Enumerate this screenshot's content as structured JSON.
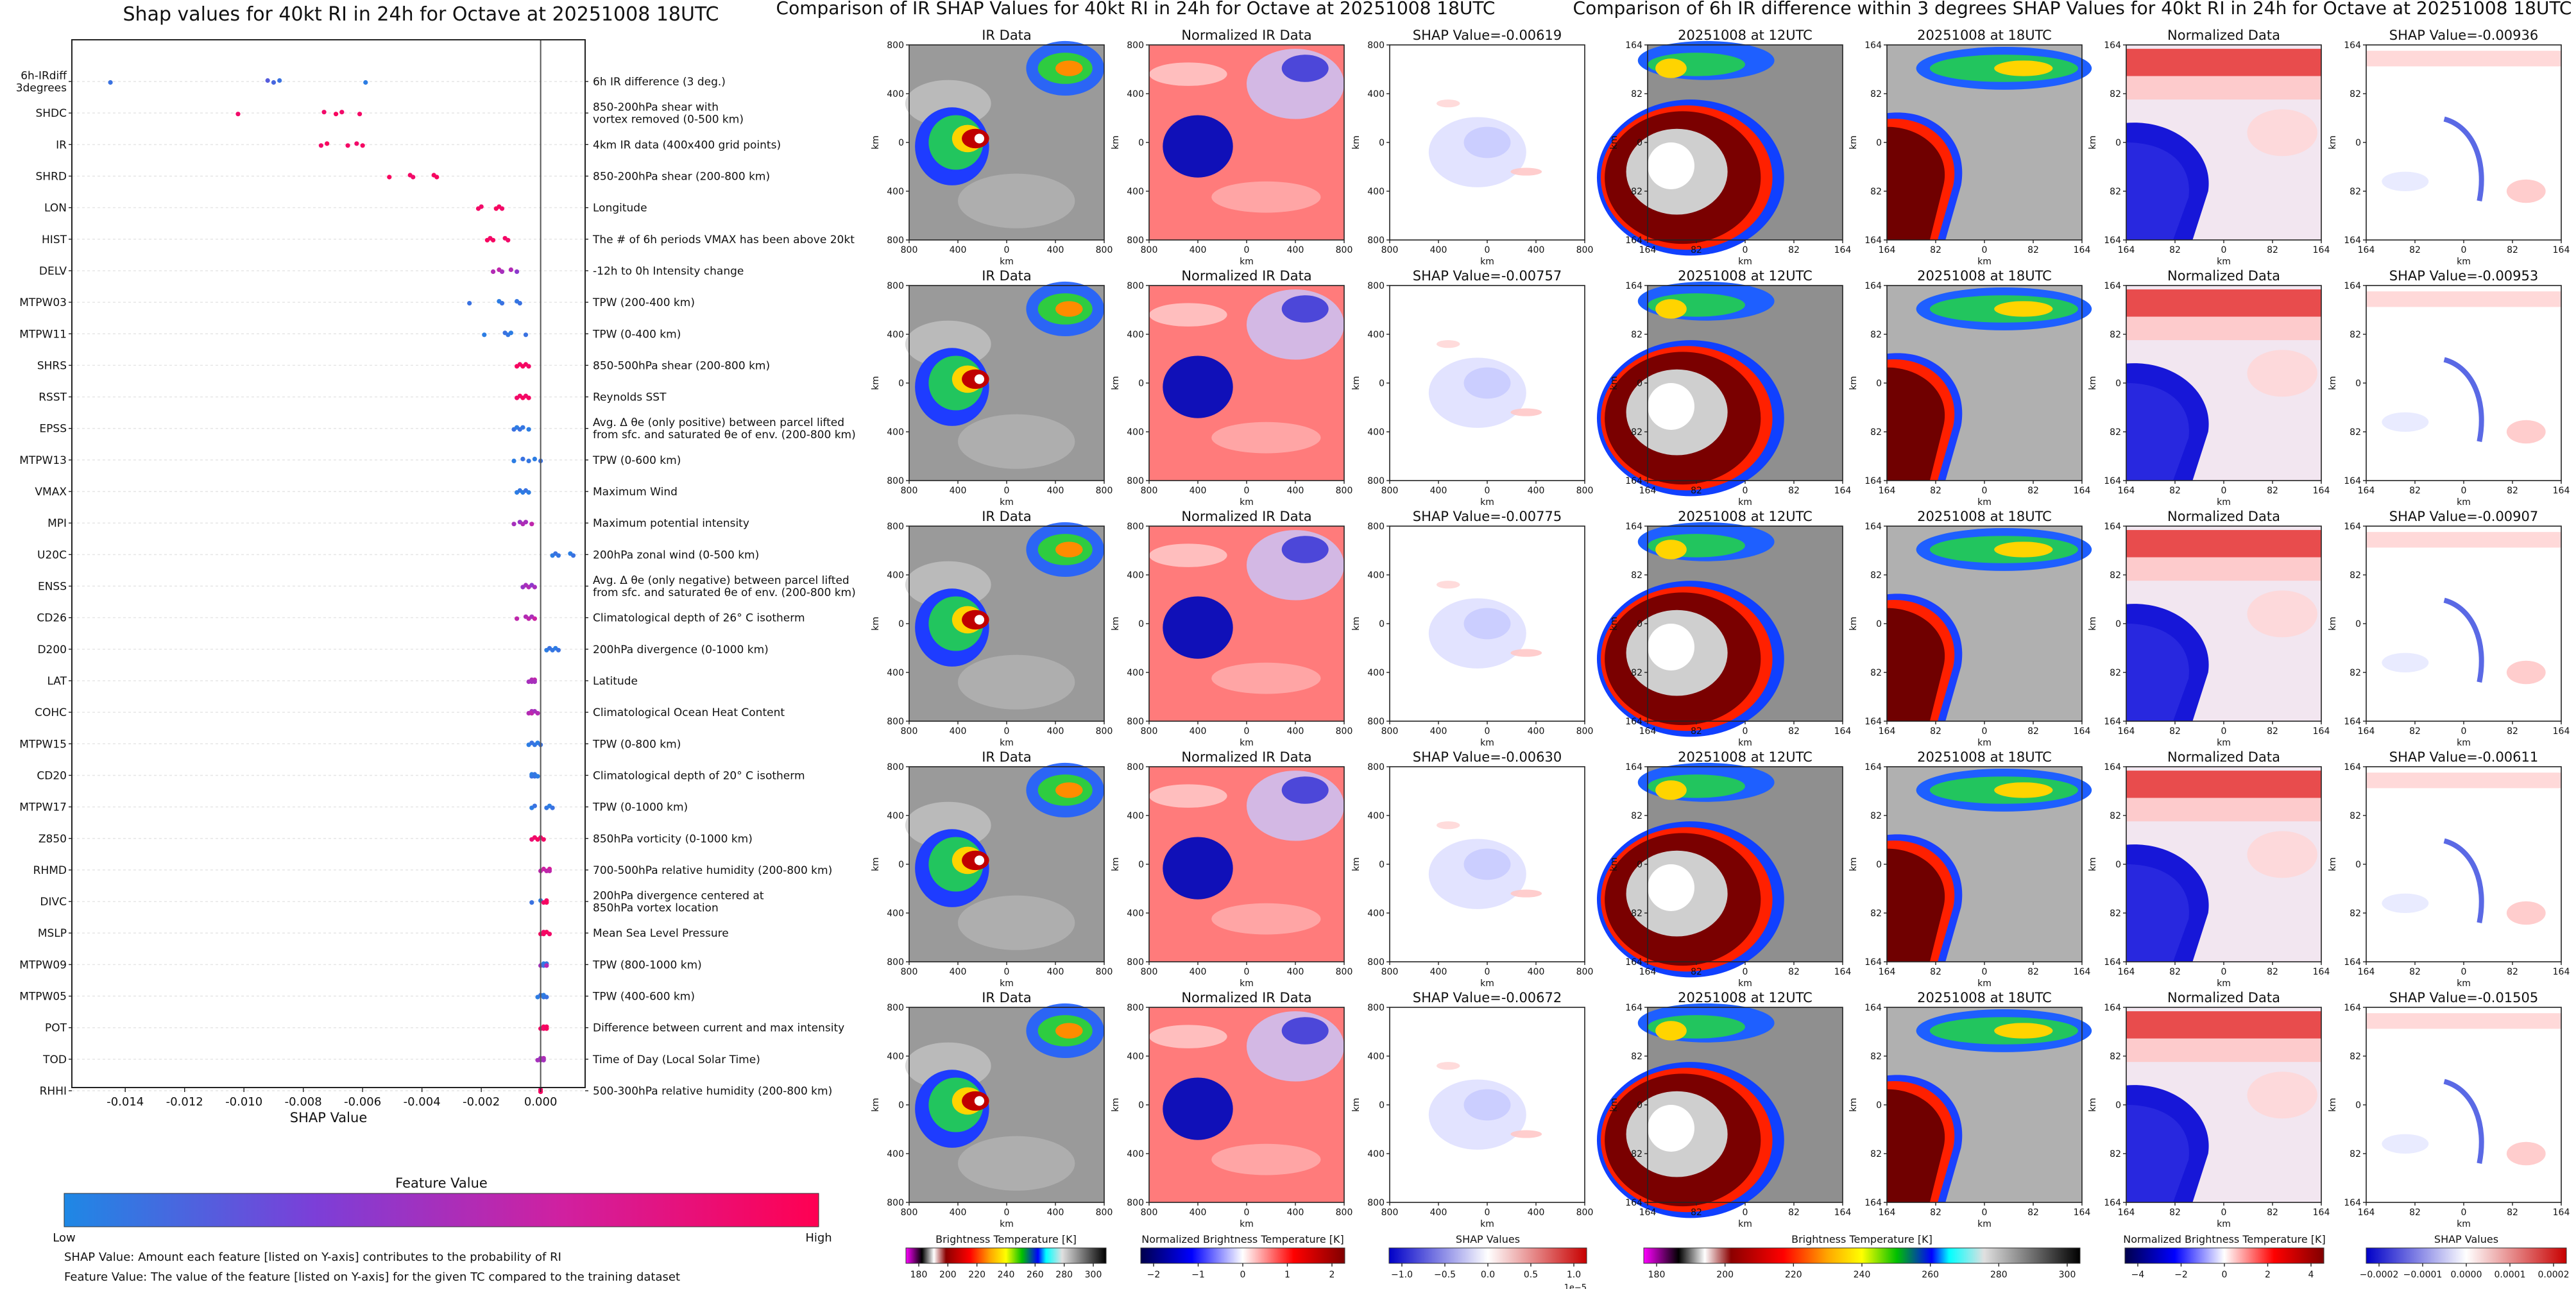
{
  "chart_data": [
    {
      "type": "scatter",
      "title": "Shap values for 40kt RI in 24h for Octave at 20251008 18UTC",
      "xlabel": "SHAP Value",
      "ylabel": "",
      "xlim": [
        -0.0158,
        0.0015
      ],
      "x_ticks": [
        "-0.014",
        "-0.012",
        "-0.010",
        "-0.008",
        "-0.006",
        "-0.004",
        "-0.002",
        "0.000"
      ],
      "x_tick_values": [
        -0.014,
        -0.012,
        -0.01,
        -0.008,
        -0.006,
        -0.004,
        -0.002,
        0.0
      ],
      "grid": "horizontal dashed row lines",
      "colorbar": {
        "title": "Feature Value",
        "low_label": "Low",
        "high_label": "High",
        "colors": [
          "#1e88e5",
          "#7b3fd8",
          "#d020a0",
          "#ff0052"
        ]
      },
      "features": [
        {
          "name": "6h-IRdiff\n3degrees",
          "description": "6h IR difference (3 deg.)",
          "shap": [
            -0.0145,
            -0.0092,
            -0.009,
            -0.0088,
            -0.0059
          ],
          "value": [
            0.1,
            0.2,
            0.15,
            0.1,
            0.05
          ]
        },
        {
          "name": "SHDC",
          "description": "850-200hPa shear with\nvortex removed (0-500 km)",
          "shap": [
            -0.0102,
            -0.0073,
            -0.0069,
            -0.0067,
            -0.0061
          ],
          "value": [
            0.9,
            0.9,
            0.95,
            0.9,
            0.92
          ]
        },
        {
          "name": "IR",
          "description": "4km IR data (400x400 grid points)",
          "shap": [
            -0.0074,
            -0.0072,
            -0.0065,
            -0.0062,
            -0.006
          ],
          "value": [
            0.9,
            0.95,
            0.92,
            0.9,
            0.93
          ]
        },
        {
          "name": "SHRD",
          "description": "850-200hPa shear (200-800 km)",
          "shap": [
            -0.0051,
            -0.0044,
            -0.0043,
            -0.0036,
            -0.0035
          ],
          "value": [
            0.95,
            0.92,
            0.9,
            0.93,
            0.95
          ]
        },
        {
          "name": "LON",
          "description": "Longitude",
          "shap": [
            -0.0021,
            -0.002,
            -0.0015,
            -0.0014,
            -0.0013
          ],
          "value": [
            0.92,
            0.9,
            0.95,
            0.93,
            0.9
          ]
        },
        {
          "name": "HIST",
          "description": "The # of 6h periods VMAX has been above 20kt",
          "shap": [
            -0.0018,
            -0.0017,
            -0.0016,
            -0.0012,
            -0.0011
          ],
          "value": [
            0.95,
            0.9,
            0.93,
            0.92,
            0.9
          ]
        },
        {
          "name": "DELV",
          "description": "-12h to 0h Intensity change",
          "shap": [
            -0.0016,
            -0.0014,
            -0.0013,
            -0.001,
            -0.0008
          ],
          "value": [
            0.55,
            0.6,
            0.5,
            0.55,
            0.4
          ]
        },
        {
          "name": "MTPW03",
          "description": "TPW (200-400 km)",
          "shap": [
            -0.0024,
            -0.0014,
            -0.0013,
            -0.0008,
            -0.0007
          ],
          "value": [
            0.1,
            0.05,
            0.1,
            0.08,
            0.1
          ]
        },
        {
          "name": "MTPW11",
          "description": "TPW (0-400 km)",
          "shap": [
            -0.0019,
            -0.0012,
            -0.0011,
            -0.001,
            -0.0005
          ],
          "value": [
            0.05,
            0.1,
            0.08,
            0.05,
            0.1
          ]
        },
        {
          "name": "SHRS",
          "description": "850-500hPa shear (200-800 km)",
          "shap": [
            -0.0008,
            -0.0007,
            -0.0006,
            -0.0005,
            -0.0004
          ],
          "value": [
            0.95,
            0.92,
            0.95,
            0.93,
            0.9
          ]
        },
        {
          "name": "RSST",
          "description": "Reynolds SST",
          "shap": [
            -0.0008,
            -0.0007,
            -0.0006,
            -0.0005,
            -0.0004
          ],
          "value": [
            0.9,
            0.92,
            0.95,
            0.9,
            0.93
          ]
        },
        {
          "name": "EPSS",
          "description": "Avg. Δ θe (only positive) between parcel lifted\nfrom sfc. and saturated θe of env. (200-800 km)",
          "shap": [
            -0.0009,
            -0.0008,
            -0.0007,
            -0.0006,
            -0.0004
          ],
          "value": [
            0.1,
            0.05,
            0.1,
            0.08,
            0.05
          ]
        },
        {
          "name": "MTPW13",
          "description": "TPW (0-600 km)",
          "shap": [
            -0.0009,
            -0.0006,
            -0.0004,
            -0.0002,
            0.0
          ],
          "value": [
            0.05,
            0.1,
            0.08,
            0.05,
            0.1
          ]
        },
        {
          "name": "VMAX",
          "description": "Maximum Wind",
          "shap": [
            -0.0008,
            -0.0007,
            -0.0006,
            -0.0005,
            -0.0004
          ],
          "value": [
            0.05,
            0.08,
            0.05,
            0.1,
            0.05
          ]
        },
        {
          "name": "MPI",
          "description": "Maximum potential intensity",
          "shap": [
            -0.0009,
            -0.0007,
            -0.0006,
            -0.0005,
            -0.0003
          ],
          "value": [
            0.5,
            0.45,
            0.55,
            0.5,
            0.6
          ]
        },
        {
          "name": "U20C",
          "description": "200hPa zonal wind (0-500 km)",
          "shap": [
            0.0004,
            0.0005,
            0.0006,
            0.001,
            0.0011
          ],
          "value": [
            0.05,
            0.1,
            0.08,
            0.05,
            0.1
          ]
        },
        {
          "name": "ENSS",
          "description": "Avg. Δ θe (only negative) between parcel lifted\nfrom sfc. and saturated θe of env. (200-800 km)",
          "shap": [
            -0.0006,
            -0.0005,
            -0.0004,
            -0.0003,
            -0.0002
          ],
          "value": [
            0.45,
            0.5,
            0.55,
            0.4,
            0.5
          ]
        },
        {
          "name": "CD26",
          "description": "Climatological depth of 26° C isotherm",
          "shap": [
            -0.0008,
            -0.0005,
            -0.0004,
            -0.0003,
            -0.0002
          ],
          "value": [
            0.6,
            0.55,
            0.6,
            0.5,
            0.65
          ]
        },
        {
          "name": "D200",
          "description": "200hPa divergence (0-1000 km)",
          "shap": [
            0.0002,
            0.0003,
            0.0004,
            0.0005,
            0.0006
          ],
          "value": [
            0.05,
            0.1,
            0.08,
            0.05,
            0.1
          ]
        },
        {
          "name": "LAT",
          "description": "Latitude",
          "shap": [
            -0.0004,
            -0.0003,
            -0.0003,
            -0.0002,
            -0.0002
          ],
          "value": [
            0.5,
            0.55,
            0.5,
            0.6,
            0.5
          ]
        },
        {
          "name": "COHC",
          "description": "Climatological Ocean Heat Content",
          "shap": [
            -0.0004,
            -0.0003,
            -0.0003,
            -0.0002,
            -0.0001
          ],
          "value": [
            0.55,
            0.5,
            0.6,
            0.5,
            0.55
          ]
        },
        {
          "name": "MTPW15",
          "description": "TPW (0-800 km)",
          "shap": [
            -0.0004,
            -0.0003,
            -0.0002,
            -0.0001,
            0.0
          ],
          "value": [
            0.05,
            0.1,
            0.08,
            0.05,
            0.1
          ]
        },
        {
          "name": "CD20",
          "description": "Climatological depth of 20° C isotherm",
          "shap": [
            -0.0003,
            -0.0003,
            -0.0002,
            -0.0002,
            -0.0001
          ],
          "value": [
            0.1,
            0.05,
            0.1,
            0.08,
            0.05
          ]
        },
        {
          "name": "MTPW17",
          "description": "TPW (0-1000 km)",
          "shap": [
            -0.0003,
            -0.0002,
            0.0002,
            0.0003,
            0.0004
          ],
          "value": [
            0.05,
            0.1,
            0.08,
            0.05,
            0.1
          ]
        },
        {
          "name": "Z850",
          "description": "850hPa vorticity (0-1000 km)",
          "shap": [
            -0.0003,
            -0.0002,
            -0.0001,
            0.0,
            0.0001
          ],
          "value": [
            0.85,
            0.9,
            0.95,
            0.9,
            0.92
          ]
        },
        {
          "name": "RHMD",
          "description": "700-500hPa relative humidity (200-800 km)",
          "shap": [
            0.0,
            0.0001,
            0.0002,
            0.0003,
            0.0003
          ],
          "value": [
            0.6,
            0.65,
            0.6,
            0.7,
            0.6
          ]
        },
        {
          "name": "DIVC",
          "description": "200hPa divergence centered at\n850hPa vortex location",
          "shap": [
            -0.0003,
            0.0,
            0.0001,
            0.0002,
            0.0002
          ],
          "value": [
            0.1,
            0.05,
            0.9,
            0.92,
            0.95
          ]
        },
        {
          "name": "MSLP",
          "description": "Mean Sea Level Pressure",
          "shap": [
            0.0,
            0.0001,
            0.0001,
            0.0002,
            0.0003
          ],
          "value": [
            0.95,
            0.9,
            0.92,
            0.95,
            0.9
          ]
        },
        {
          "name": "MTPW09",
          "description": "TPW (800-1000 km)",
          "shap": [
            0.0,
            0.0001,
            0.0001,
            0.0002,
            0.0002
          ],
          "value": [
            0.5,
            0.05,
            0.1,
            0.08,
            0.55
          ]
        },
        {
          "name": "MTPW05",
          "description": "TPW (400-600 km)",
          "shap": [
            -0.0001,
            0.0,
            0.0001,
            0.0001,
            0.0002
          ],
          "value": [
            0.05,
            0.1,
            0.08,
            0.05,
            0.1
          ]
        },
        {
          "name": "POT",
          "description": "Difference between current and max intensity",
          "shap": [
            0.0,
            0.0001,
            0.0001,
            0.0002,
            0.0002
          ],
          "value": [
            0.92,
            0.95,
            0.9,
            0.93,
            0.95
          ]
        },
        {
          "name": "TOD",
          "description": "Time of Day (Local Solar Time)",
          "shap": [
            -0.0001,
            0.0,
            0.0,
            0.0001,
            0.0001
          ],
          "value": [
            0.5,
            0.45,
            0.5,
            0.55,
            0.5
          ]
        },
        {
          "name": "RHHI",
          "description": "500-300hPa relative humidity (200-800 km)",
          "shap": [
            0.0,
            0.0,
            0.0,
            0.0,
            0.0
          ],
          "value": [
            0.9,
            0.92,
            0.95,
            0.9,
            0.93
          ]
        }
      ],
      "footnotes": [
        "SHAP Value: Amount each feature [listed on Y-axis] contributes to the probability of RI",
        "Feature Value: The value of the feature [listed on Y-axis] for the given TC compared to the training dataset"
      ]
    },
    {
      "type": "heatmap",
      "title": "Comparison of IR SHAP Values for 40kt RI in 24h for Octave at 20251008 18UTC",
      "columns": [
        "IR Data",
        "Normalized IR Data",
        "SHAP Value"
      ],
      "rows": 5,
      "shap_values": [
        "-0.00619",
        "-0.00757",
        "-0.00775",
        "-0.00630",
        "-0.00672"
      ],
      "axis_label": "km",
      "y_ticks": [
        "800",
        "400",
        "0",
        "400",
        "800"
      ],
      "x_ticks": [
        "800",
        "400",
        "0",
        "400",
        "800"
      ],
      "colorbars": [
        {
          "title": "Brightness Temperature [K]",
          "ticks": [
            "180",
            "200",
            "220",
            "240",
            "260",
            "280",
            "300"
          ]
        },
        {
          "title": "Normalized Brightness Temperature [K]",
          "ticks": [
            "−2",
            "−1",
            "0",
            "1",
            "2"
          ]
        },
        {
          "title": "SHAP Values",
          "ticks": [
            "−1.0",
            "−0.5",
            "0.0",
            "0.5",
            "1.0"
          ],
          "scale_note": "1e−5"
        }
      ]
    },
    {
      "type": "heatmap",
      "title": "Comparison of 6h IR difference within 3 degrees SHAP Values for 40kt RI in 24h for Octave at 20251008 18UTC",
      "columns": [
        "20251008 at 12UTC",
        "20251008 at 18UTC",
        "Normalized Data",
        "SHAP Value"
      ],
      "rows": 5,
      "shap_values": [
        "-0.00936",
        "-0.00953",
        "-0.00907",
        "-0.00611",
        "-0.01505"
      ],
      "axis_label": "km",
      "y_ticks": [
        "164",
        "82",
        "0",
        "82",
        "164"
      ],
      "x_ticks": [
        "164",
        "82",
        "0",
        "82",
        "164"
      ],
      "colorbars": [
        {
          "title": "Brightness Temperature [K]",
          "ticks": [
            "180",
            "200",
            "220",
            "240",
            "260",
            "280",
            "300"
          ]
        },
        {
          "title": "Normalized Brightness Temperature [K]",
          "ticks": [
            "−4",
            "−2",
            "0",
            "2",
            "4"
          ]
        },
        {
          "title": "SHAP Values",
          "ticks": [
            "−0.0002",
            "−0.0001",
            "0.0000",
            "0.0001",
            "0.0002"
          ]
        }
      ]
    }
  ]
}
